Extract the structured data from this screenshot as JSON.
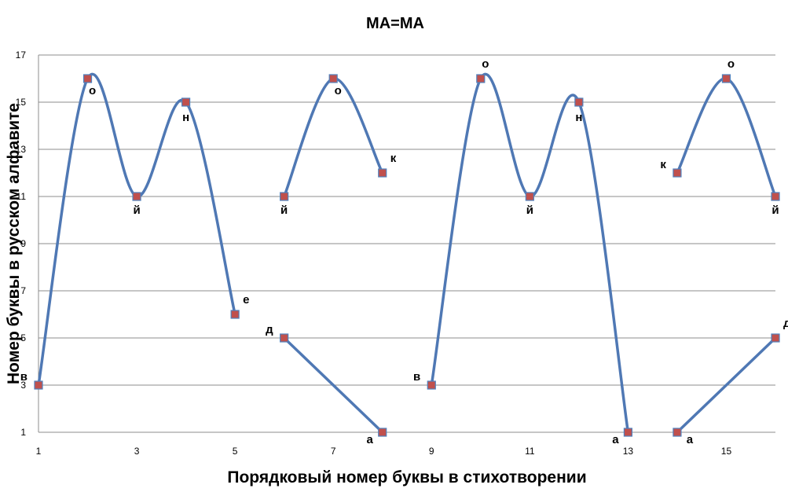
{
  "chart_data": {
    "type": "line",
    "title": "МА=МА",
    "xlabel": "Порядковый номер буквы в стихотворении",
    "ylabel": "Номер буквы в русском алфавите",
    "xlim": [
      1,
      16
    ],
    "ylim": [
      1,
      17
    ],
    "x_ticks": [
      1,
      3,
      5,
      7,
      9,
      11,
      13,
      15
    ],
    "y_ticks": [
      1,
      3,
      5,
      7,
      9,
      11,
      13,
      15,
      17
    ],
    "grid": "horizontal",
    "smoothed": true,
    "colors": {
      "line": "#4f78b4",
      "marker_fill": "#c0504d",
      "grid": "#8c8c8c"
    },
    "series": [
      {
        "points": [
          {
            "x": 1,
            "y": 3,
            "label": "в"
          },
          {
            "x": 2,
            "y": 16,
            "label": "о"
          },
          {
            "x": 3,
            "y": 11,
            "label": "й"
          },
          {
            "x": 4,
            "y": 15,
            "label": "н"
          },
          {
            "x": 5,
            "y": 6,
            "label": "е"
          }
        ]
      },
      {
        "points": [
          {
            "x": 6,
            "y": 11,
            "label": "й"
          },
          {
            "x": 7,
            "y": 16,
            "label": "о"
          },
          {
            "x": 8,
            "y": 12,
            "label": "к"
          }
        ]
      },
      {
        "points": [
          {
            "x": 6,
            "y": 5,
            "label": "д"
          },
          {
            "x": 8,
            "y": 1,
            "label": "а"
          }
        ]
      },
      {
        "points": [
          {
            "x": 9,
            "y": 3,
            "label": "в"
          },
          {
            "x": 10,
            "y": 16,
            "label": "о"
          },
          {
            "x": 11,
            "y": 11,
            "label": "й"
          },
          {
            "x": 12,
            "y": 15,
            "label": "н"
          },
          {
            "x": 13,
            "y": 1,
            "label": "а"
          }
        ]
      },
      {
        "points": [
          {
            "x": 14,
            "y": 12,
            "label": "к"
          },
          {
            "x": 15,
            "y": 16,
            "label": "о"
          },
          {
            "x": 16,
            "y": 11,
            "label": "й"
          }
        ]
      },
      {
        "points": [
          {
            "x": 14,
            "y": 1,
            "label": "а"
          },
          {
            "x": 16,
            "y": 5,
            "label": "д"
          }
        ]
      }
    ]
  }
}
